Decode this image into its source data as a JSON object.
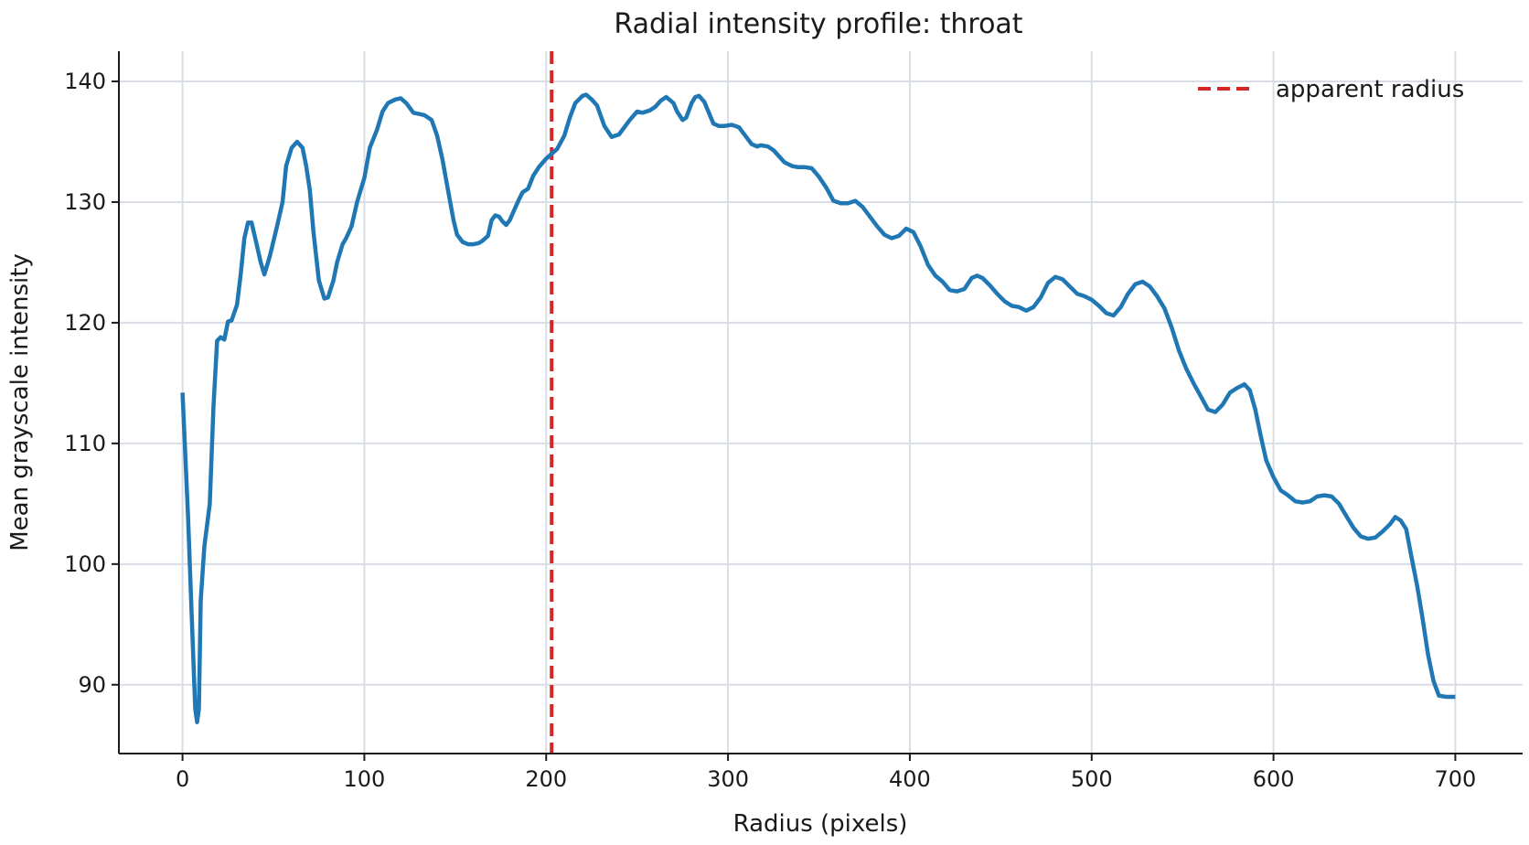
{
  "chart_data": {
    "type": "line",
    "title": "Radial intensity profile: throat",
    "xlabel": "Radius (pixels)",
    "ylabel": "Mean grayscale intensity",
    "xlim": [
      -35,
      737
    ],
    "ylim": [
      84.3,
      142.5
    ],
    "xticks": [
      0,
      100,
      200,
      300,
      400,
      500,
      600,
      700
    ],
    "yticks": [
      90,
      100,
      110,
      120,
      130,
      140
    ],
    "grid": true,
    "legend_position": "top-right",
    "legend": [
      {
        "label": "apparent radius",
        "color": "#d62728",
        "style": "dashed"
      }
    ],
    "reference_lines": [
      {
        "axis": "x",
        "value": 203,
        "label": "apparent radius",
        "color": "#d62728",
        "style": "dashed"
      }
    ],
    "series": [
      {
        "color": "#1f77b4",
        "points": [
          [
            0,
            114.2
          ],
          [
            3,
            104
          ],
          [
            5,
            96
          ],
          [
            7,
            88
          ],
          [
            8,
            86.9
          ],
          [
            9,
            88
          ],
          [
            10,
            97
          ],
          [
            12,
            101.5
          ],
          [
            15,
            105
          ],
          [
            17,
            113
          ],
          [
            19,
            118.5
          ],
          [
            21,
            118.8
          ],
          [
            23,
            118.6
          ],
          [
            25,
            120.1
          ],
          [
            27,
            120.2
          ],
          [
            30,
            121.5
          ],
          [
            32,
            124
          ],
          [
            34,
            127
          ],
          [
            36,
            128.3
          ],
          [
            38,
            128.3
          ],
          [
            40,
            127
          ],
          [
            43,
            125
          ],
          [
            45,
            124
          ],
          [
            48,
            125.5
          ],
          [
            52,
            128
          ],
          [
            55,
            130
          ],
          [
            57,
            133
          ],
          [
            60,
            134.5
          ],
          [
            63,
            135
          ],
          [
            66,
            134.5
          ],
          [
            68,
            133
          ],
          [
            70,
            131
          ],
          [
            72,
            127.5
          ],
          [
            75,
            123.5
          ],
          [
            78,
            122
          ],
          [
            80,
            122.1
          ],
          [
            83,
            123.5
          ],
          [
            85,
            125
          ],
          [
            88,
            126.5
          ],
          [
            90,
            127
          ],
          [
            93,
            128
          ],
          [
            96,
            130
          ],
          [
            100,
            132
          ],
          [
            103,
            134.5
          ],
          [
            107,
            136
          ],
          [
            110,
            137.5
          ],
          [
            113,
            138.2
          ],
          [
            117,
            138.5
          ],
          [
            120,
            138.6
          ],
          [
            123,
            138.2
          ],
          [
            127,
            137.4
          ],
          [
            130,
            137.3
          ],
          [
            133,
            137.2
          ],
          [
            137,
            136.8
          ],
          [
            140,
            135.5
          ],
          [
            143,
            133.5
          ],
          [
            146,
            131
          ],
          [
            149,
            128.5
          ],
          [
            151,
            127.3
          ],
          [
            154,
            126.7
          ],
          [
            157,
            126.5
          ],
          [
            160,
            126.5
          ],
          [
            163,
            126.6
          ],
          [
            165,
            126.8
          ],
          [
            168,
            127.2
          ],
          [
            170,
            128.5
          ],
          [
            172,
            128.9
          ],
          [
            174,
            128.8
          ],
          [
            176,
            128.4
          ],
          [
            178,
            128.1
          ],
          [
            180,
            128.5
          ],
          [
            182,
            129.2
          ],
          [
            185,
            130.2
          ],
          [
            187,
            130.8
          ],
          [
            190,
            131.1
          ],
          [
            193,
            132.2
          ],
          [
            196,
            132.9
          ],
          [
            200,
            133.6
          ],
          [
            203,
            134
          ],
          [
            206,
            134.4
          ],
          [
            210,
            135.5
          ],
          [
            213,
            137
          ],
          [
            216,
            138.2
          ],
          [
            220,
            138.8
          ],
          [
            222,
            138.9
          ],
          [
            225,
            138.5
          ],
          [
            228,
            138
          ],
          [
            232,
            136.3
          ],
          [
            236,
            135.4
          ],
          [
            240,
            135.6
          ],
          [
            243,
            136.2
          ],
          [
            246,
            136.8
          ],
          [
            250,
            137.5
          ],
          [
            253,
            137.4
          ],
          [
            257,
            137.6
          ],
          [
            260,
            137.9
          ],
          [
            263,
            138.4
          ],
          [
            266,
            138.7
          ],
          [
            270,
            138.2
          ],
          [
            272,
            137.5
          ],
          [
            275,
            136.8
          ],
          [
            277,
            137
          ],
          [
            280,
            138.2
          ],
          [
            282,
            138.7
          ],
          [
            284,
            138.8
          ],
          [
            287,
            138.3
          ],
          [
            290,
            137.2
          ],
          [
            292,
            136.5
          ],
          [
            295,
            136.3
          ],
          [
            298,
            136.3
          ],
          [
            302,
            136.4
          ],
          [
            306,
            136.2
          ],
          [
            310,
            135.4
          ],
          [
            313,
            134.8
          ],
          [
            316,
            134.6
          ],
          [
            318,
            134.7
          ],
          [
            322,
            134.6
          ],
          [
            325,
            134.3
          ],
          [
            328,
            133.8
          ],
          [
            331,
            133.3
          ],
          [
            335,
            133
          ],
          [
            338,
            132.9
          ],
          [
            342,
            132.9
          ],
          [
            346,
            132.8
          ],
          [
            350,
            132.1
          ],
          [
            354,
            131.2
          ],
          [
            358,
            130.1
          ],
          [
            362,
            129.9
          ],
          [
            366,
            129.9
          ],
          [
            370,
            130.1
          ],
          [
            374,
            129.6
          ],
          [
            378,
            128.8
          ],
          [
            382,
            128
          ],
          [
            386,
            127.3
          ],
          [
            390,
            127
          ],
          [
            394,
            127.2
          ],
          [
            398,
            127.8
          ],
          [
            402,
            127.5
          ],
          [
            406,
            126.3
          ],
          [
            410,
            124.8
          ],
          [
            414,
            123.9
          ],
          [
            418,
            123.4
          ],
          [
            422,
            122.7
          ],
          [
            426,
            122.6
          ],
          [
            430,
            122.8
          ],
          [
            434,
            123.7
          ],
          [
            437,
            123.9
          ],
          [
            440,
            123.7
          ],
          [
            444,
            123.1
          ],
          [
            448,
            122.4
          ],
          [
            452,
            121.8
          ],
          [
            456,
            121.4
          ],
          [
            460,
            121.3
          ],
          [
            464,
            121
          ],
          [
            468,
            121.3
          ],
          [
            472,
            122.1
          ],
          [
            476,
            123.3
          ],
          [
            480,
            123.8
          ],
          [
            484,
            123.6
          ],
          [
            488,
            123
          ],
          [
            492,
            122.4
          ],
          [
            496,
            122.2
          ],
          [
            500,
            121.9
          ],
          [
            504,
            121.4
          ],
          [
            508,
            120.8
          ],
          [
            512,
            120.6
          ],
          [
            516,
            121.3
          ],
          [
            520,
            122.4
          ],
          [
            524,
            123.2
          ],
          [
            528,
            123.4
          ],
          [
            532,
            123
          ],
          [
            536,
            122.2
          ],
          [
            540,
            121.2
          ],
          [
            544,
            119.6
          ],
          [
            548,
            117.7
          ],
          [
            552,
            116.2
          ],
          [
            556,
            115
          ],
          [
            560,
            113.9
          ],
          [
            564,
            112.8
          ],
          [
            568,
            112.6
          ],
          [
            572,
            113.2
          ],
          [
            576,
            114.2
          ],
          [
            580,
            114.6
          ],
          [
            584,
            114.9
          ],
          [
            587,
            114.4
          ],
          [
            590,
            112.8
          ],
          [
            593,
            110.6
          ],
          [
            596,
            108.6
          ],
          [
            600,
            107.2
          ],
          [
            604,
            106.1
          ],
          [
            608,
            105.7
          ],
          [
            612,
            105.2
          ],
          [
            616,
            105.1
          ],
          [
            620,
            105.2
          ],
          [
            624,
            105.6
          ],
          [
            628,
            105.7
          ],
          [
            632,
            105.6
          ],
          [
            636,
            105
          ],
          [
            640,
            104
          ],
          [
            644,
            103
          ],
          [
            648,
            102.3
          ],
          [
            652,
            102.1
          ],
          [
            656,
            102.2
          ],
          [
            660,
            102.7
          ],
          [
            664,
            103.3
          ],
          [
            667,
            103.9
          ],
          [
            670,
            103.6
          ],
          [
            673,
            102.9
          ],
          [
            676,
            100.5
          ],
          [
            679,
            98.2
          ],
          [
            682,
            95.5
          ],
          [
            685,
            92.5
          ],
          [
            688,
            90.3
          ],
          [
            691,
            89.1
          ],
          [
            695,
            89
          ],
          [
            700,
            89
          ]
        ]
      }
    ]
  }
}
